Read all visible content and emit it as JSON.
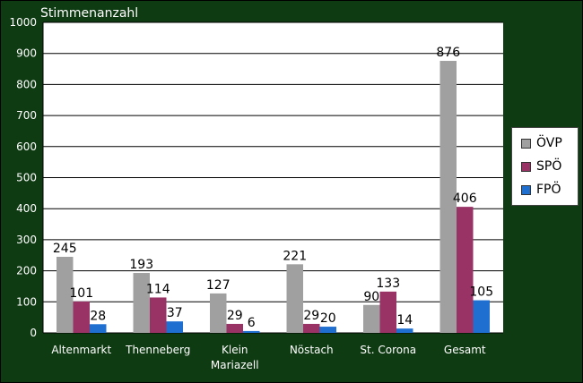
{
  "chart_data": {
    "type": "bar",
    "title": "",
    "ylabel": "Stimmenanzahl",
    "xlabel": "",
    "ylim": [
      0,
      1000
    ],
    "yticks": [
      0,
      100,
      200,
      300,
      400,
      500,
      600,
      700,
      800,
      900,
      1000
    ],
    "grid": true,
    "legend_position": "right",
    "categories": [
      [
        "Altenmarkt"
      ],
      [
        "Thenneberg"
      ],
      [
        "Klein",
        "Mariazell"
      ],
      [
        "Nöstach"
      ],
      [
        "St. Corona"
      ],
      [
        "Gesamt"
      ]
    ],
    "series": [
      {
        "name": "ÖVP",
        "color": "#a0a0a0",
        "values": [
          245,
          193,
          127,
          221,
          90,
          876
        ]
      },
      {
        "name": "SPÖ",
        "color": "#993366",
        "values": [
          101,
          114,
          29,
          29,
          133,
          406
        ]
      },
      {
        "name": "FPÖ",
        "color": "#1f6fd1",
        "values": [
          28,
          37,
          6,
          20,
          14,
          105
        ]
      }
    ]
  }
}
